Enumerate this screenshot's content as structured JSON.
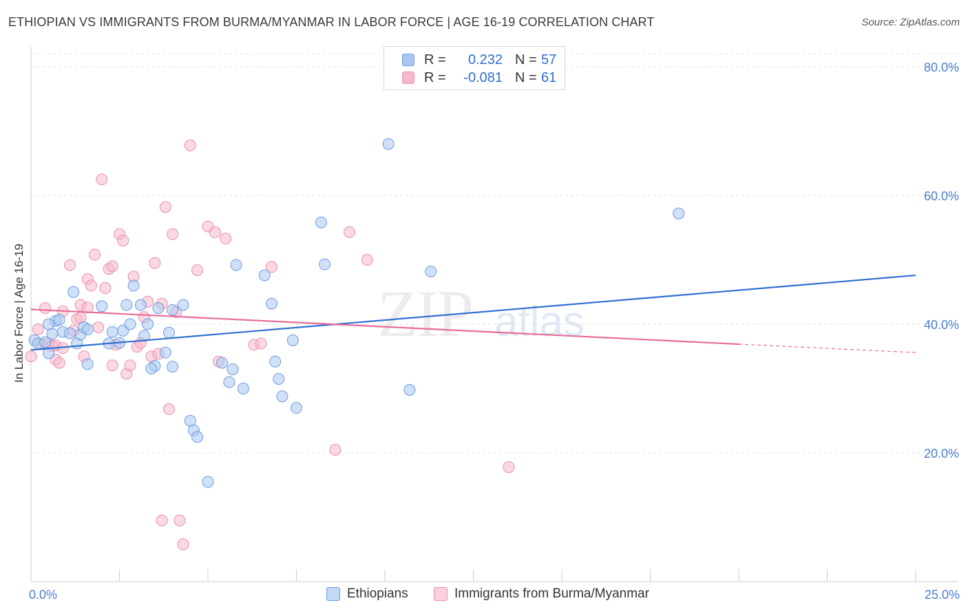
{
  "header": {
    "title": "ETHIOPIAN VS IMMIGRANTS FROM BURMA/MYANMAR IN LABOR FORCE | AGE 16-19 CORRELATION CHART",
    "source": "Source: ZipAtlas.com"
  },
  "watermark": {
    "zip": "ZIP",
    "atlas": "atlas"
  },
  "legend": {
    "rows": [
      {
        "r_label": "R =",
        "r_value": "0.232",
        "n_label": "N =",
        "n_value": "57"
      },
      {
        "r_label": "R =",
        "r_value": "-0.081",
        "n_label": "N =",
        "n_value": "61"
      }
    ]
  },
  "bottom_legend": {
    "items": [
      {
        "label": "Ethiopians"
      },
      {
        "label": "Immigrants from Burma/Myanmar"
      }
    ]
  },
  "colors": {
    "blue_fill": "#aac8f0",
    "blue_stroke": "#6b9be0",
    "blue_line": "#2f6fd0",
    "pink_fill": "#f6b9cc",
    "pink_stroke": "#ea8eac",
    "pink_line": "#e66c98",
    "grid": "#e0e0e0",
    "tick_text": "#4a7fd0"
  },
  "chart_data": {
    "type": "scatter",
    "title": "ETHIOPIAN VS IMMIGRANTS FROM BURMA/MYANMAR IN LABOR FORCE | AGE 16-19 CORRELATION CHART",
    "xlabel": "",
    "ylabel": "In Labor Force | Age 16-19",
    "xlim": [
      0,
      25
    ],
    "ylim": [
      0,
      80
    ],
    "x_tick_labels": [
      "0.0%",
      "25.0%"
    ],
    "y_ticks": [
      20,
      40,
      60,
      80
    ],
    "y_tick_labels": [
      "20.0%",
      "40.0%",
      "60.0%",
      "80.0%"
    ],
    "grid": true,
    "legend_position": "top-center",
    "series": [
      {
        "name": "Ethiopians",
        "color": "#6b9be0",
        "trend": {
          "x": [
            0,
            25
          ],
          "y": [
            36.0,
            47.6
          ]
        },
        "points": [
          [
            0.1,
            37.5
          ],
          [
            0.2,
            37.0
          ],
          [
            0.4,
            37.2
          ],
          [
            0.5,
            35.5
          ],
          [
            0.6,
            38.5
          ],
          [
            0.7,
            40.5
          ],
          [
            0.5,
            40.0
          ],
          [
            0.9,
            38.8
          ],
          [
            1.1,
            38.6
          ],
          [
            1.3,
            37.0
          ],
          [
            1.4,
            38.4
          ],
          [
            1.5,
            39.5
          ],
          [
            1.6,
            39.2
          ],
          [
            1.6,
            33.8
          ],
          [
            2.0,
            42.8
          ],
          [
            2.2,
            37.0
          ],
          [
            2.3,
            38.8
          ],
          [
            2.5,
            37.1
          ],
          [
            2.6,
            39.0
          ],
          [
            2.8,
            40.0
          ],
          [
            2.9,
            46.0
          ],
          [
            3.1,
            43.0
          ],
          [
            3.2,
            38.2
          ],
          [
            3.3,
            40.0
          ],
          [
            3.5,
            33.5
          ],
          [
            3.6,
            42.5
          ],
          [
            3.8,
            35.6
          ],
          [
            3.9,
            38.7
          ],
          [
            4.0,
            42.2
          ],
          [
            4.3,
            43.0
          ],
          [
            1.2,
            45.0
          ],
          [
            2.7,
            43.0
          ],
          [
            3.4,
            33.1
          ],
          [
            4.0,
            33.4
          ],
          [
            4.5,
            25.0
          ],
          [
            4.6,
            23.5
          ],
          [
            4.7,
            22.5
          ],
          [
            5.0,
            15.5
          ],
          [
            5.4,
            34.0
          ],
          [
            5.6,
            31.0
          ],
          [
            5.7,
            33.0
          ],
          [
            5.8,
            49.2
          ],
          [
            6.0,
            30.0
          ],
          [
            6.6,
            47.6
          ],
          [
            6.8,
            43.2
          ],
          [
            6.9,
            34.2
          ],
          [
            7.0,
            31.5
          ],
          [
            7.1,
            28.8
          ],
          [
            7.4,
            37.5
          ],
          [
            7.5,
            27.0
          ],
          [
            8.2,
            55.8
          ],
          [
            8.3,
            49.3
          ],
          [
            10.1,
            68.0
          ],
          [
            10.7,
            29.8
          ],
          [
            11.3,
            48.2
          ],
          [
            18.3,
            57.2
          ],
          [
            0.8,
            40.7
          ]
        ]
      },
      {
        "name": "Immigrants from Burma/Myanmar",
        "color": "#ea8eac",
        "trend": {
          "x": [
            0,
            20
          ],
          "y": [
            42.3,
            36.9
          ]
        },
        "dashed_extension": {
          "x": [
            20,
            25
          ],
          "y": [
            36.9,
            35.6
          ]
        },
        "points": [
          [
            0.0,
            35.0
          ],
          [
            0.2,
            39.2
          ],
          [
            0.3,
            36.9
          ],
          [
            0.4,
            42.5
          ],
          [
            0.5,
            37.0
          ],
          [
            0.6,
            36.6
          ],
          [
            0.7,
            34.5
          ],
          [
            0.8,
            34.0
          ],
          [
            0.9,
            42.0
          ],
          [
            1.1,
            49.2
          ],
          [
            1.2,
            39.0
          ],
          [
            1.3,
            40.8
          ],
          [
            1.4,
            43.0
          ],
          [
            1.5,
            35.0
          ],
          [
            1.6,
            47.0
          ],
          [
            1.7,
            46.0
          ],
          [
            1.8,
            50.8
          ],
          [
            1.9,
            39.5
          ],
          [
            2.0,
            62.5
          ],
          [
            2.1,
            45.6
          ],
          [
            2.2,
            48.6
          ],
          [
            2.3,
            49.0
          ],
          [
            2.4,
            36.8
          ],
          [
            2.5,
            54.0
          ],
          [
            2.6,
            53.0
          ],
          [
            2.7,
            32.3
          ],
          [
            2.8,
            33.6
          ],
          [
            2.9,
            47.4
          ],
          [
            3.0,
            36.5
          ],
          [
            3.1,
            37.1
          ],
          [
            3.2,
            41.1
          ],
          [
            3.3,
            43.5
          ],
          [
            3.4,
            35.0
          ],
          [
            3.5,
            49.5
          ],
          [
            3.6,
            35.4
          ],
          [
            3.7,
            43.2
          ],
          [
            3.8,
            58.2
          ],
          [
            3.9,
            26.8
          ],
          [
            4.0,
            54.0
          ],
          [
            4.1,
            41.9
          ],
          [
            4.2,
            9.5
          ],
          [
            4.3,
            5.8
          ],
          [
            4.5,
            67.8
          ],
          [
            4.7,
            48.4
          ],
          [
            5.0,
            55.2
          ],
          [
            5.2,
            54.3
          ],
          [
            5.3,
            34.2
          ],
          [
            5.5,
            53.3
          ],
          [
            6.3,
            36.8
          ],
          [
            6.5,
            37.0
          ],
          [
            6.8,
            48.9
          ],
          [
            9.0,
            54.3
          ],
          [
            9.5,
            50.0
          ],
          [
            8.6,
            20.5
          ],
          [
            13.5,
            17.8
          ],
          [
            3.7,
            9.5
          ],
          [
            1.6,
            42.6
          ],
          [
            2.3,
            33.6
          ],
          [
            1.4,
            41.0
          ],
          [
            0.7,
            36.7
          ],
          [
            0.9,
            36.3
          ]
        ]
      }
    ]
  }
}
